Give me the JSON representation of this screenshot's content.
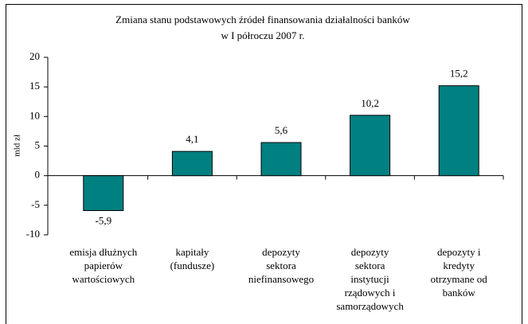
{
  "chart_data": {
    "type": "bar",
    "title": [
      "Zmiana stanu podstawowych źródeł finansowania działalności banków",
      "w I półroczu 2007 r."
    ],
    "y_label": "mld zł",
    "categories": [
      [
        "emisja dłużnych",
        "papierów",
        "wartościowych"
      ],
      [
        "kapitały",
        "(fundusze)"
      ],
      [
        "depozyty",
        "sektora",
        "niefinansowego"
      ],
      [
        "depozyty",
        "sektora",
        "instytucji",
        "rządowych i",
        "samorządowych"
      ],
      [
        "depozyty i",
        "kredyty",
        "otrzymane od",
        "banków"
      ]
    ],
    "values": [
      -5.9,
      4.1,
      5.6,
      10.2,
      15.2
    ],
    "value_labels": [
      "-5,9",
      "4,1",
      "5,6",
      "10,2",
      "15,2"
    ],
    "color": "#008080",
    "ylim": [
      -10,
      20
    ],
    "yticks": [
      -10,
      -5,
      0,
      5,
      10,
      15,
      20
    ]
  }
}
